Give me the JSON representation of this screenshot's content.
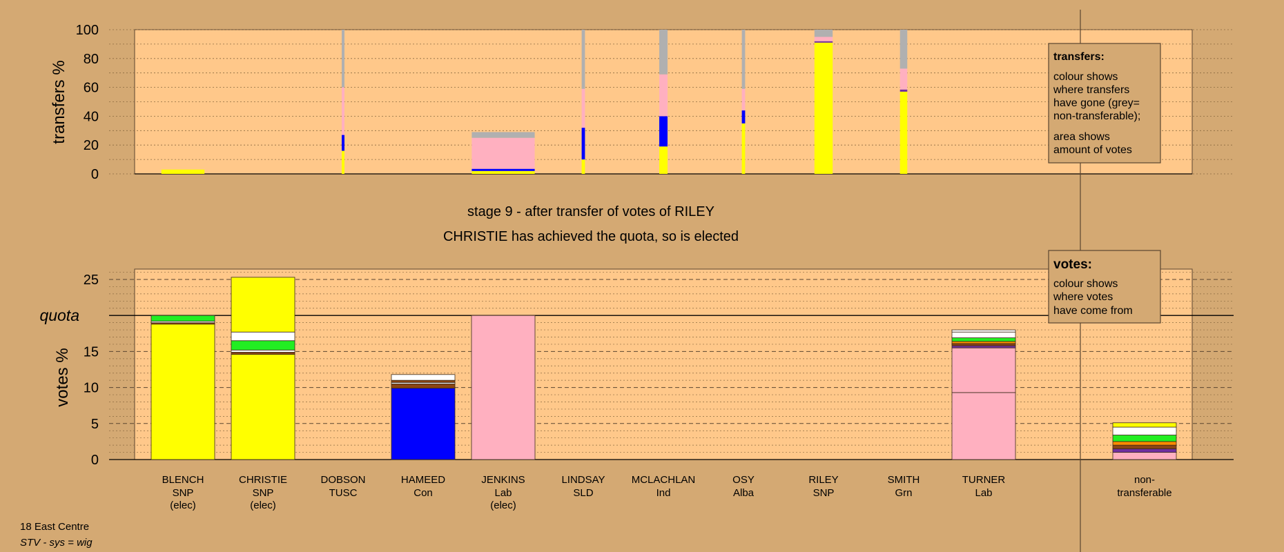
{
  "colors": {
    "background": "#d4a973",
    "plot_bg": "#ffc88a",
    "yellow": "#ffff00",
    "blue": "#0000ff",
    "pink": "#ffb0c0",
    "grey": "#b0b0b0",
    "green": "#22ee22",
    "white": "#ffffff",
    "brown": "#8b4513",
    "purple": "#7030a0",
    "orange": "#ff8c00",
    "red": "#cc0000"
  },
  "header": {
    "stage_title": "stage 9 - after transfer of votes of RILEY",
    "stage_subtitle": "CHRISTIE has achieved the quota, so is elected"
  },
  "footer": {
    "ward": "18 East Centre",
    "system": "STV - sys = wig"
  },
  "legend_transfers": {
    "title": "transfers:",
    "line1": "colour shows",
    "line2": "where transfers",
    "line3": "have gone (grey=",
    "line4": "non-transferable);",
    "line5": "area shows",
    "line6": "amount of votes"
  },
  "legend_votes": {
    "title": "votes:",
    "line1": "colour shows",
    "line2": "where votes",
    "line3": "have come from"
  },
  "candidates": [
    {
      "name": "BLENCH",
      "party": "SNP",
      "status": "(elec)"
    },
    {
      "name": "CHRISTIE",
      "party": "SNP",
      "status": "(elec)"
    },
    {
      "name": "DOBSON",
      "party": "TUSC",
      "status": ""
    },
    {
      "name": "HAMEED",
      "party": "Con",
      "status": ""
    },
    {
      "name": "JENKINS",
      "party": "Lab",
      "status": "(elec)"
    },
    {
      "name": "LINDSAY",
      "party": "SLD",
      "status": ""
    },
    {
      "name": "MCLACHLAN",
      "party": "Ind",
      "status": ""
    },
    {
      "name": "OSY",
      "party": "Alba",
      "status": ""
    },
    {
      "name": "RILEY",
      "party": "SNP",
      "status": ""
    },
    {
      "name": "SMITH",
      "party": "Grn",
      "status": ""
    },
    {
      "name": "TURNER",
      "party": "Lab",
      "status": ""
    }
  ],
  "nontransferable_label": {
    "line1": "non-",
    "line2": "transferable"
  },
  "chart_data": [
    {
      "type": "bar",
      "stacked": true,
      "ylabel": "transfers %",
      "ylim": [
        0,
        100
      ],
      "yticks": [
        0,
        20,
        40,
        60,
        80,
        100
      ],
      "grid": true,
      "note": "variable-width stacked bars; width proportional to amount of votes transferred",
      "bars": [
        {
          "candidate": "BLENCH",
          "width_votes": 1.3,
          "segments": [
            {
              "color": "yellow",
              "from": 0,
              "to": 3
            }
          ]
        },
        {
          "candidate": "DOBSON",
          "width_votes": 0.08,
          "segments": [
            {
              "color": "yellow",
              "from": 0,
              "to": 16
            },
            {
              "color": "blue",
              "from": 16,
              "to": 27
            },
            {
              "color": "pink",
              "from": 27,
              "to": 60
            },
            {
              "color": "grey",
              "from": 60,
              "to": 100
            }
          ]
        },
        {
          "candidate": "JENKINS",
          "width_votes": 1.9,
          "segments": [
            {
              "color": "yellow",
              "from": 0,
              "to": 2
            },
            {
              "color": "blue",
              "from": 2,
              "to": 3.5
            },
            {
              "color": "pink",
              "from": 3.5,
              "to": 25
            },
            {
              "color": "grey",
              "from": 25,
              "to": 29
            }
          ]
        },
        {
          "candidate": "LINDSAY",
          "width_votes": 0.1,
          "segments": [
            {
              "color": "yellow",
              "from": 0,
              "to": 10
            },
            {
              "color": "blue",
              "from": 10,
              "to": 32
            },
            {
              "color": "pink",
              "from": 32,
              "to": 59
            },
            {
              "color": "grey",
              "from": 59,
              "to": 100
            }
          ]
        },
        {
          "candidate": "MCLACHLAN",
          "width_votes": 0.25,
          "segments": [
            {
              "color": "yellow",
              "from": 0,
              "to": 19
            },
            {
              "color": "blue",
              "from": 19,
              "to": 40
            },
            {
              "color": "pink",
              "from": 40,
              "to": 69
            },
            {
              "color": "grey",
              "from": 69,
              "to": 100
            }
          ]
        },
        {
          "candidate": "OSY",
          "width_votes": 0.1,
          "segments": [
            {
              "color": "yellow",
              "from": 0,
              "to": 35
            },
            {
              "color": "blue",
              "from": 35,
              "to": 44
            },
            {
              "color": "pink",
              "from": 44,
              "to": 59
            },
            {
              "color": "grey",
              "from": 59,
              "to": 100
            }
          ]
        },
        {
          "candidate": "RILEY",
          "width_votes": 0.55,
          "segments": [
            {
              "color": "yellow",
              "from": 0,
              "to": 91
            },
            {
              "color": "purple",
              "from": 91,
              "to": 92
            },
            {
              "color": "pink",
              "from": 92,
              "to": 95
            },
            {
              "color": "grey",
              "from": 95,
              "to": 100
            }
          ]
        },
        {
          "candidate": "SMITH",
          "width_votes": 0.22,
          "segments": [
            {
              "color": "yellow",
              "from": 0,
              "to": 57
            },
            {
              "color": "purple",
              "from": 57,
              "to": 58.5
            },
            {
              "color": "pink",
              "from": 58.5,
              "to": 73
            },
            {
              "color": "grey",
              "from": 73,
              "to": 100
            }
          ]
        }
      ]
    },
    {
      "type": "bar",
      "stacked": true,
      "ylabel": "votes %",
      "ylim": [
        0,
        25
      ],
      "yticks": [
        0,
        5,
        10,
        15,
        20,
        25
      ],
      "quota": 20,
      "quota_label": "quota",
      "grid": true,
      "bars": [
        {
          "category": "BLENCH",
          "segments": [
            {
              "color": "yellow",
              "from": 0,
              "to": 18.8
            },
            {
              "color": "brown",
              "from": 18.8,
              "to": 19.0
            },
            {
              "color": "white",
              "from": 19.0,
              "to": 19.2
            },
            {
              "color": "green",
              "from": 19.2,
              "to": 20.0
            }
          ]
        },
        {
          "category": "CHRISTIE",
          "segments": [
            {
              "color": "yellow",
              "from": 0,
              "to": 14.6
            },
            {
              "color": "brown",
              "from": 14.6,
              "to": 14.9
            },
            {
              "color": "white",
              "from": 14.9,
              "to": 15.2
            },
            {
              "color": "green",
              "from": 15.2,
              "to": 16.5
            },
            {
              "color": "white",
              "from": 16.5,
              "to": 17.7
            },
            {
              "color": "yellow",
              "from": 17.7,
              "to": 25.3
            }
          ]
        },
        {
          "category": "DOBSON",
          "segments": []
        },
        {
          "category": "HAMEED",
          "segments": [
            {
              "color": "blue",
              "from": 0,
              "to": 9.9
            },
            {
              "color": "brown",
              "from": 9.9,
              "to": 10.5
            },
            {
              "color": "white",
              "from": 10.5,
              "to": 10.7
            },
            {
              "color": "brown",
              "from": 10.7,
              "to": 11.0
            },
            {
              "color": "white",
              "from": 11.0,
              "to": 11.8
            }
          ]
        },
        {
          "category": "JENKINS",
          "segments": [
            {
              "color": "pink",
              "from": 0,
              "to": 20.0
            }
          ]
        },
        {
          "category": "LINDSAY",
          "segments": []
        },
        {
          "category": "MCLACHLAN",
          "segments": []
        },
        {
          "category": "OSY",
          "segments": []
        },
        {
          "category": "RILEY",
          "segments": []
        },
        {
          "category": "SMITH",
          "segments": []
        },
        {
          "category": "TURNER",
          "segments": [
            {
              "color": "pink",
              "from": 0,
              "to": 9.3
            },
            {
              "color": "pink",
              "from": 9.3,
              "to": 15.5
            },
            {
              "color": "purple",
              "from": 15.5,
              "to": 15.8
            },
            {
              "color": "brown",
              "from": 15.8,
              "to": 16.1
            },
            {
              "color": "orange",
              "from": 16.1,
              "to": 16.4
            },
            {
              "color": "green",
              "from": 16.4,
              "to": 16.9
            },
            {
              "color": "white",
              "from": 16.9,
              "to": 17.7
            },
            {
              "color": "white",
              "from": 17.7,
              "to": 18.0
            }
          ]
        },
        {
          "category": "non-transferable",
          "segments": [
            {
              "color": "pink",
              "from": 0,
              "to": 1.0
            },
            {
              "color": "purple",
              "from": 1.0,
              "to": 1.5
            },
            {
              "color": "brown",
              "from": 1.5,
              "to": 2.0
            },
            {
              "color": "orange",
              "from": 2.0,
              "to": 2.5
            },
            {
              "color": "green",
              "from": 2.5,
              "to": 3.4
            },
            {
              "color": "white",
              "from": 3.4,
              "to": 4.5
            },
            {
              "color": "yellow",
              "from": 4.5,
              "to": 5.1
            }
          ]
        }
      ]
    }
  ]
}
